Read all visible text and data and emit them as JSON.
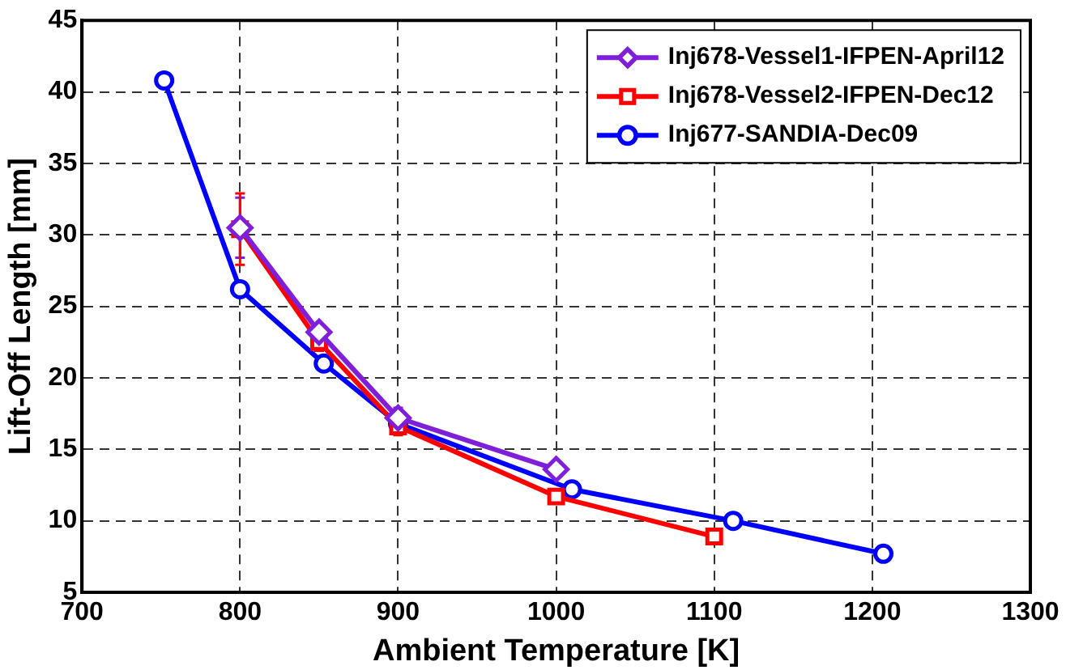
{
  "chart_data": {
    "type": "line",
    "xlabel": "Ambient Temperature [K]",
    "ylabel": "Lift-Off Length [mm]",
    "xlim": [
      700,
      1300
    ],
    "xticks": [
      700,
      800,
      900,
      1000,
      1100,
      1200,
      1300
    ],
    "ylim": [
      5,
      45
    ],
    "yticks": [
      5,
      10,
      15,
      20,
      25,
      30,
      35,
      40,
      45
    ],
    "grid": true,
    "legend": "top right",
    "line_style": "solid",
    "series": [
      {
        "name": "Inj678-Vessel1-IFPEN-April12",
        "color": "#7f1fd9",
        "marker": "diamond",
        "x": [
          800,
          850,
          900,
          1000
        ],
        "values": [
          30.5,
          23.2,
          17.2,
          13.6
        ],
        "errors": [
          2.1,
          null,
          0.7,
          null
        ]
      },
      {
        "name": "Inj678-Vessel2-IFPEN-Dec12",
        "color": "#ff0000",
        "marker": "square",
        "x": [
          800,
          850,
          900,
          1000,
          1100
        ],
        "values": [
          30.4,
          22.5,
          16.6,
          11.7,
          8.9
        ],
        "errors": [
          2.5,
          0.6,
          0.6,
          null,
          null
        ]
      },
      {
        "name": "Inj677-SANDIA-Dec09",
        "color": "#0000ff",
        "marker": "circle",
        "x": [
          752,
          800,
          853,
          900,
          1010,
          1112,
          1207
        ],
        "values": [
          40.8,
          26.2,
          21.0,
          16.8,
          12.2,
          10.0,
          7.7
        ]
      }
    ]
  }
}
